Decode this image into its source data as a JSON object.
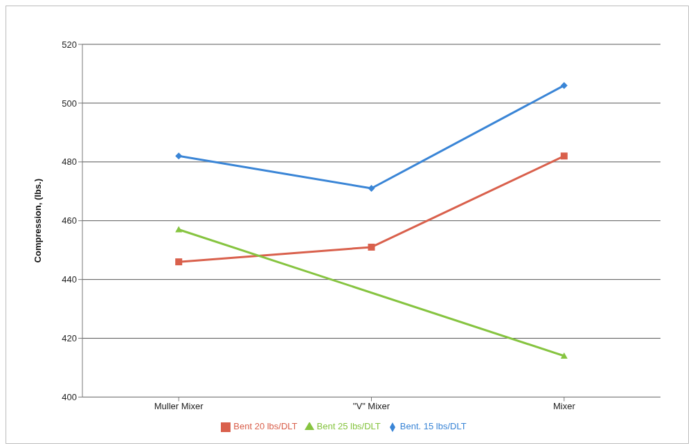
{
  "chart_data": {
    "type": "line",
    "ylabel": "Compression, (lbs.)",
    "categories": [
      "Muller Mixer",
      "\"V\" Mixer",
      "Mixer"
    ],
    "series": [
      {
        "name": "Bent. 15 lbs/DLT",
        "color": "#3a85d6",
        "values": [
          482,
          471,
          506
        ],
        "marker": "diamond"
      },
      {
        "name": "Bent 20 lbs/DLT",
        "color": "#d9604c",
        "values": [
          446,
          451,
          482
        ],
        "marker": "square"
      },
      {
        "name": "Bent 25 lbs/DLT",
        "color": "#86c440",
        "values": [
          457,
          null,
          414
        ],
        "marker": "triangle"
      }
    ],
    "ylim": [
      400,
      520
    ],
    "yticks": [
      400,
      420,
      440,
      460,
      480,
      500,
      520
    ],
    "grid": "y",
    "legend": "bottom"
  }
}
